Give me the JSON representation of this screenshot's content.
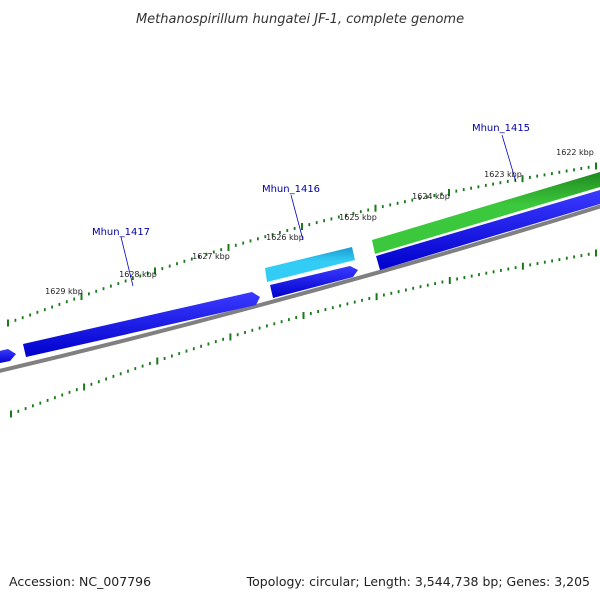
{
  "title": "Methanospirillum hungatei JF-1, complete genome",
  "footer": {
    "accession": "Accession: NC_007796",
    "stats": "Topology: circular; Length: 3,544,738 bp; Genes: 3,205"
  },
  "tick_labels": [
    {
      "id": "1629",
      "text": "1629 kbp"
    },
    {
      "id": "1628",
      "text": "1628 kbp"
    },
    {
      "id": "1627",
      "text": "1627 kbp"
    },
    {
      "id": "1626",
      "text": "1626 kbp"
    },
    {
      "id": "1625",
      "text": "1625 kbp"
    },
    {
      "id": "1624",
      "text": "1624 kbp"
    },
    {
      "id": "1623",
      "text": "1623 kbp"
    },
    {
      "id": "1622",
      "text": "1622 kbp"
    }
  ],
  "gene_labels": [
    {
      "id": "mhun-1417",
      "text": "Mhun_1417"
    },
    {
      "id": "mhun-1416",
      "text": "Mhun_1416"
    },
    {
      "id": "mhun-1415",
      "text": "Mhun_1415"
    }
  ],
  "colors": {
    "backbone": "#808080",
    "cds": "#0000ee",
    "gene_mhun_1416": "#1ec8f0",
    "gene_mhun_1415": "#3cc83c",
    "ticks": "#1a7a1a",
    "gene_label": "#0000aa"
  }
}
